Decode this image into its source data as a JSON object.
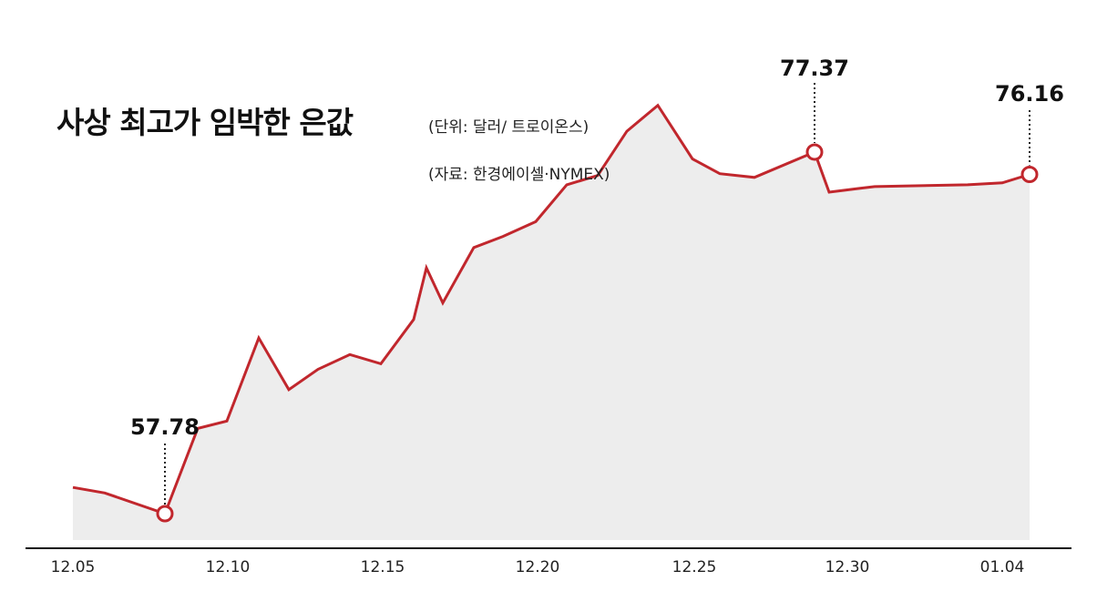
{
  "chart_data": {
    "type": "area",
    "title": "사상 최고가 임박한 은값",
    "unit": "(단위: 달러/ 트로이온스)",
    "source": "(자료: 한경에이셀·NYMEX)",
    "x_tick_labels": [
      "12.05",
      "12.10",
      "12.15",
      "12.20",
      "12.25",
      "12.30",
      "01.04"
    ],
    "x_index": [
      0,
      1,
      2,
      3,
      4,
      5,
      6,
      7,
      8,
      9,
      10,
      11,
      12,
      13,
      14,
      15,
      16,
      17,
      18,
      19,
      20,
      21,
      22,
      23,
      24,
      25,
      26,
      27,
      28,
      29,
      30,
      31
    ],
    "values": [
      59.2,
      58.9,
      57.78,
      62.4,
      62.8,
      67.3,
      64.5,
      65.6,
      66.4,
      65.9,
      68.3,
      71.1,
      69.2,
      72.2,
      72.8,
      73.6,
      75.6,
      76.1,
      78.5,
      79.9,
      77.0,
      76.2,
      76.0,
      77.37,
      75.2,
      75.3,
      75.4,
      75.5,
      75.6,
      75.7,
      76.16,
      76.16
    ],
    "highlights": [
      {
        "label": "57.78",
        "value": 57.78
      },
      {
        "label": "77.37",
        "value": 77.37
      },
      {
        "label": "76.16",
        "value": 76.16
      }
    ],
    "colors": {
      "line": "#c1272d",
      "fill": "#ededed",
      "axis": "#111111",
      "marker_fill": "#ffffff"
    }
  }
}
